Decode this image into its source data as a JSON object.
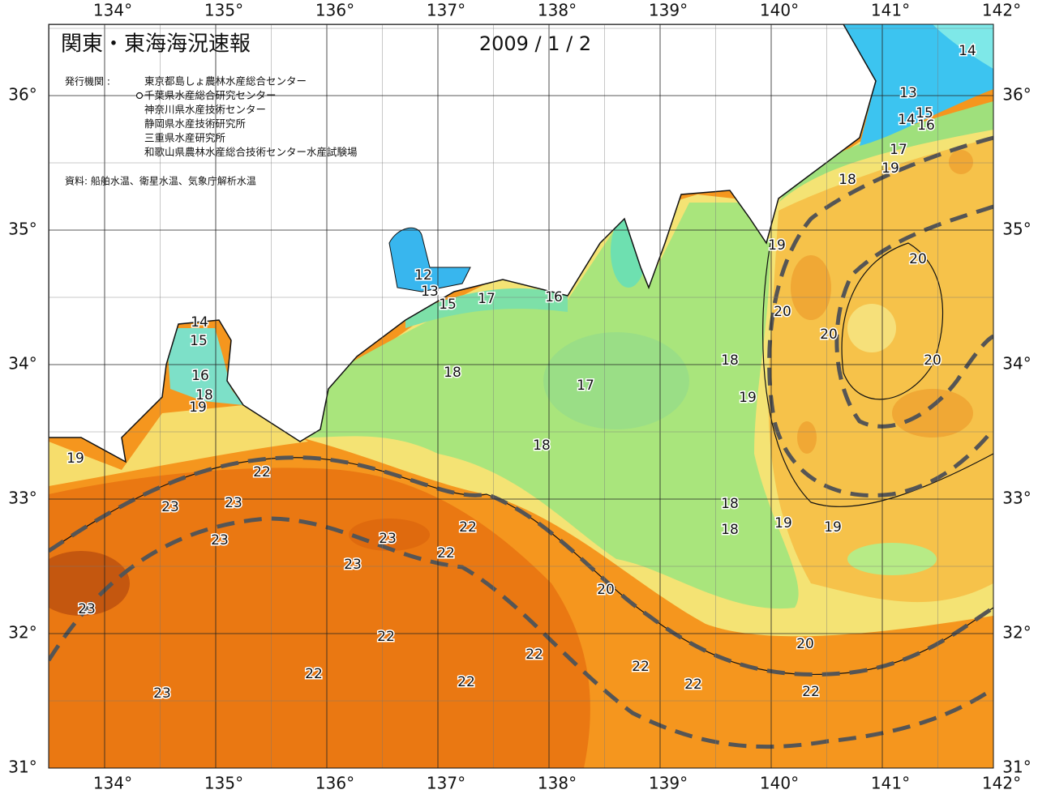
{
  "header": {
    "title": "関東・東海海況速報",
    "date": "2009 / 1 / 2"
  },
  "publishers": {
    "label": "発行機関 :",
    "items": [
      "東京都島しょ農林水産総合センター",
      "千葉県水産総合研究センター",
      "神奈川県水産技術センター",
      "静岡県水産技術研究所",
      "三重県水産研究所",
      "和歌山県農林水産総合技術センター水産試験場"
    ]
  },
  "source": "資料: 船舶水温、衛星水温、気象庁解析水温",
  "longitude_labels": [
    "134°",
    "135°",
    "136°",
    "137°",
    "138°",
    "139°",
    "140°",
    "141°",
    "142°"
  ],
  "latitude_labels": [
    "36°",
    "35°",
    "34°",
    "33°",
    "32°",
    "31°"
  ],
  "contour_labels": [
    "14",
    "13",
    "15",
    "14",
    "16",
    "17",
    "19",
    "18",
    "19",
    "20",
    "20",
    "20",
    "20",
    "18",
    "19",
    "12",
    "13",
    "15",
    "17",
    "16",
    "14",
    "15",
    "16",
    "18",
    "19",
    "18",
    "17",
    "18",
    "19",
    "22",
    "23",
    "23",
    "23",
    "23",
    "22",
    "22",
    "23",
    "18",
    "18",
    "19",
    "19",
    "20",
    "23",
    "22",
    "22",
    "22",
    "22",
    "22",
    "22",
    "20",
    "22",
    "23"
  ]
}
